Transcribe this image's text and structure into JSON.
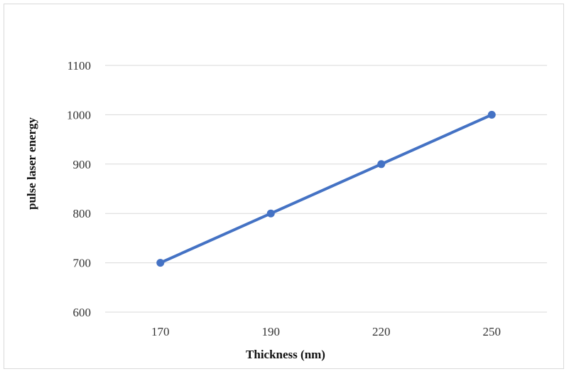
{
  "chart_data": {
    "type": "line",
    "categories": [
      "170",
      "190",
      "220",
      "250"
    ],
    "series": [
      {
        "values": [
          700,
          800,
          900,
          1000
        ],
        "color": "#4472c4"
      }
    ],
    "xlabel": "Thickness (nm)",
    "ylabel": "pulse laser energy",
    "ylim": [
      600,
      1100
    ],
    "yticks": [
      "600",
      "700",
      "800",
      "900",
      "1000",
      "1100"
    ],
    "grid": true,
    "gridColor": "#d9d9d9"
  }
}
